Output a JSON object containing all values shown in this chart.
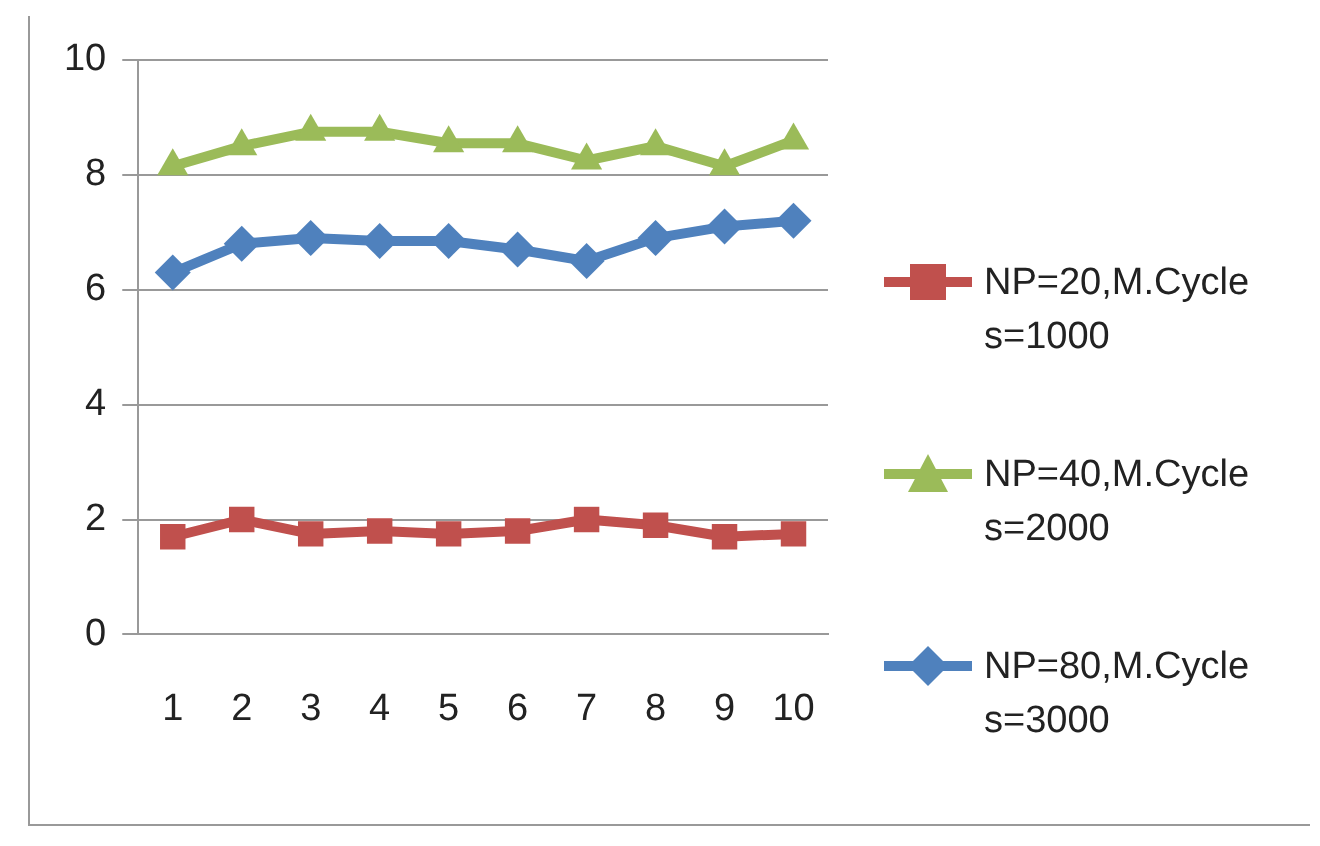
{
  "chart_data": {
    "type": "line",
    "categories": [
      "1",
      "2",
      "3",
      "4",
      "5",
      "6",
      "7",
      "8",
      "9",
      "10"
    ],
    "ylim": [
      0,
      10
    ],
    "yticks": [
      0,
      2,
      4,
      6,
      8,
      10
    ],
    "grid": "y",
    "legend": "right",
    "series": [
      {
        "name": "NP=20,M.Cycles=1000",
        "color": "#c0504d",
        "marker": "square",
        "values": [
          1.7,
          2.0,
          1.75,
          1.8,
          1.75,
          1.8,
          2.0,
          1.9,
          1.7,
          1.75
        ]
      },
      {
        "name": "NP=40,M.Cycles=2000",
        "color": "#9bbb59",
        "marker": "triangle",
        "values": [
          8.15,
          8.5,
          8.75,
          8.75,
          8.55,
          8.55,
          8.25,
          8.5,
          8.15,
          8.6
        ]
      },
      {
        "name": "NP=80,M.Cycles=3000",
        "color": "#4f81bd",
        "marker": "diamond",
        "values": [
          6.3,
          6.8,
          6.9,
          6.85,
          6.85,
          6.7,
          6.5,
          6.9,
          7.1,
          7.2
        ]
      }
    ]
  }
}
